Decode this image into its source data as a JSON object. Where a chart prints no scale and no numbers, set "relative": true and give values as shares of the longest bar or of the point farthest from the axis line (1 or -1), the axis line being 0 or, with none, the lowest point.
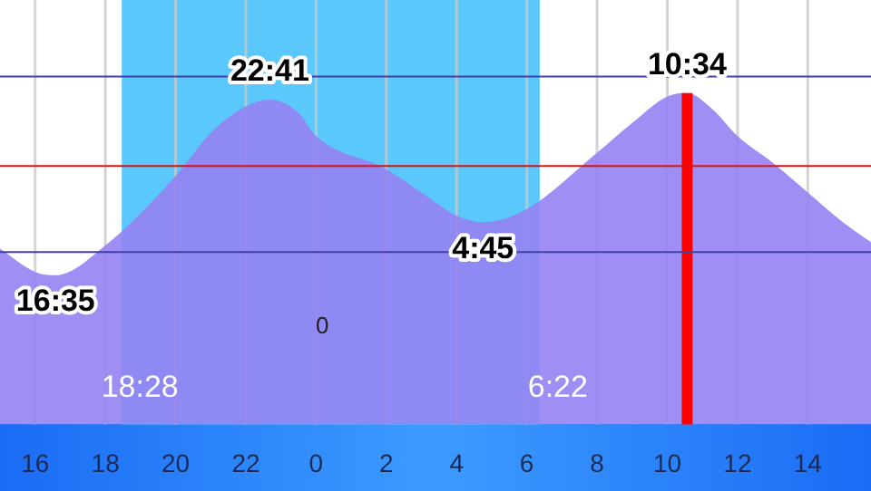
{
  "chart_data": {
    "type": "area",
    "relative": true,
    "legend": false,
    "grid": "x",
    "marker": "none",
    "x": [
      "--01-01T15:00",
      "--01-01T16:00",
      "--01-01T16:35",
      "--01-01T18:00",
      "--01-01T20:00",
      "--01-01T21:00",
      "--01-01T22:00",
      "--01-01T22:41",
      "--01-01T23:30",
      "--01-02T00:00",
      "--01-02T02:00",
      "--01-02T03:00",
      "--01-02T04:00",
      "--01-02T04:45",
      "--01-02T06:00",
      "--01-02T08:00",
      "--01-02T09:00",
      "--01-02T10:00",
      "--01-02T10:34",
      "--01-02T11:18",
      "--01-02T12:00",
      "--01-02T13:00",
      "--01-02T14:00",
      "--01-02T15:00",
      "--01-02T15:48"
    ],
    "series": [
      {
        "color": "#9582f2",
        "values": [
          0.53,
          0.46,
          0.45,
          0.54,
          0.75,
          0.88,
          0.96,
          0.98,
          0.94,
          0.87,
          0.77,
          0.7,
          0.63,
          0.61,
          0.65,
          0.82,
          0.91,
          0.99,
          1,
          0.95,
          0.87,
          0.79,
          0.7,
          0.61,
          0.55
        ]
      }
    ],
    "xlim": [
      "--01-01T15:00",
      "--01-02T15:48"
    ],
    "xticks": [
      {
        "value": "--01-01T16:00",
        "label": "16"
      },
      {
        "value": "--01-01T18:00",
        "label": "18"
      },
      {
        "value": "--01-01T20:00",
        "label": "20"
      },
      {
        "value": "--01-01T22:00",
        "label": "22"
      },
      {
        "value": "--01-02T00:00",
        "label": "0"
      },
      {
        "value": "--01-02T02:00",
        "label": "2"
      },
      {
        "value": "--01-02T04:00",
        "label": "4"
      },
      {
        "value": "--01-02T06:00",
        "label": "6"
      },
      {
        "value": "--01-02T08:00",
        "label": "8"
      },
      {
        "value": "--01-02T10:00",
        "label": "10"
      },
      {
        "value": "--01-02T12:00",
        "label": "12"
      },
      {
        "value": "--01-02T14:00",
        "label": "14"
      }
    ],
    "bands": [
      {
        "axis": "x",
        "from": "--01-01T18:28",
        "to": "--01-02T06:22",
        "color": "#5ac8fa"
      }
    ],
    "ref_lines": [
      {
        "axis": "x",
        "value": "--01-02T10:34",
        "color": "#ff0000"
      },
      {
        "axis": "y",
        "value": 1.05,
        "color": "#4040a8"
      },
      {
        "axis": "y",
        "value": 0.78,
        "color": "#e01010"
      },
      {
        "axis": "y",
        "value": 0.52,
        "color": "#4040a8"
      }
    ],
    "annotations": [
      {
        "text": "16:35",
        "x": "--01-01T16:35",
        "y": 0.45
      },
      {
        "text": "22:41",
        "x": "--01-01T22:41",
        "y": 0.98
      },
      {
        "text": "4:45",
        "x": "--01-02T04:45",
        "y": 0.61
      },
      {
        "text": "10:34",
        "x": "--01-02T10:34",
        "y": 1
      },
      {
        "text": "18:28",
        "x": "--01-01T18:28",
        "y": 0.11
      },
      {
        "text": "6:22",
        "x": "--01-02T06:22",
        "y": 0.11
      },
      "0"
    ]
  }
}
